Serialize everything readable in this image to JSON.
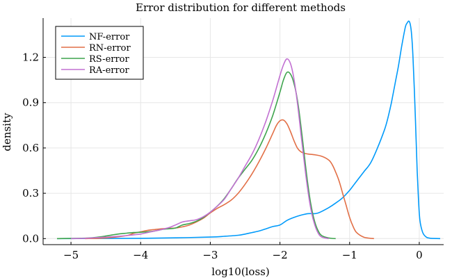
{
  "chart_data": {
    "type": "line",
    "title": "Error distribution for different methods",
    "xlabel": "log10(loss)",
    "ylabel": "density",
    "xlim": [
      -5.4,
      0.35
    ],
    "ylim": [
      -0.04,
      1.46
    ],
    "xticks": [
      -5,
      -4,
      -3,
      -2,
      -1,
      0
    ],
    "xtick_labels": [
      "−5",
      "−4",
      "−3",
      "−2",
      "−1",
      "0"
    ],
    "yticks": [
      0.0,
      0.3,
      0.6,
      0.9,
      1.2
    ],
    "ytick_labels": [
      "0.0",
      "0.3",
      "0.6",
      "0.9",
      "1.2"
    ],
    "grid": true,
    "legend_position": "top-left",
    "series": [
      {
        "name": "NF-error",
        "color": "#009AFA",
        "x": [
          -5.2,
          -4.5,
          -4.0,
          -3.5,
          -3.0,
          -2.8,
          -2.6,
          -2.5,
          -2.4,
          -2.3,
          -2.2,
          -2.1,
          -2.0,
          -1.9,
          -1.8,
          -1.7,
          -1.6,
          -1.5,
          -1.45,
          -1.4,
          -1.3,
          -1.2,
          -1.1,
          -1.0,
          -0.9,
          -0.8,
          -0.7,
          -0.6,
          -0.5,
          -0.45,
          -0.4,
          -0.35,
          -0.3,
          -0.25,
          -0.2,
          -0.17,
          -0.15,
          -0.13,
          -0.11,
          -0.09,
          -0.07,
          -0.05,
          -0.03,
          -0.01,
          0.01,
          0.05,
          0.1,
          0.15,
          0.2,
          0.3
        ],
        "y": [
          0.0,
          0.001,
          0.002,
          0.005,
          0.01,
          0.015,
          0.022,
          0.03,
          0.04,
          0.05,
          0.065,
          0.08,
          0.09,
          0.12,
          0.14,
          0.155,
          0.165,
          0.165,
          0.17,
          0.18,
          0.205,
          0.235,
          0.27,
          0.32,
          0.38,
          0.44,
          0.5,
          0.6,
          0.72,
          0.8,
          0.9,
          1.02,
          1.14,
          1.28,
          1.4,
          1.43,
          1.44,
          1.42,
          1.35,
          1.2,
          0.98,
          0.72,
          0.45,
          0.25,
          0.12,
          0.04,
          0.01,
          0.003,
          0.001,
          0.0
        ]
      },
      {
        "name": "RN-error",
        "color": "#E26F46",
        "x": [
          -4.8,
          -4.6,
          -4.4,
          -4.2,
          -4.1,
          -4.0,
          -3.9,
          -3.8,
          -3.7,
          -3.6,
          -3.5,
          -3.4,
          -3.3,
          -3.2,
          -3.1,
          -3.0,
          -2.9,
          -2.8,
          -2.7,
          -2.6,
          -2.5,
          -2.4,
          -2.3,
          -2.2,
          -2.1,
          -2.05,
          -2.0,
          -1.95,
          -1.9,
          -1.85,
          -1.8,
          -1.75,
          -1.7,
          -1.65,
          -1.6,
          -1.5,
          -1.4,
          -1.3,
          -1.25,
          -1.2,
          -1.15,
          -1.1,
          -1.05,
          -1.0,
          -0.95,
          -0.9,
          -0.8,
          -0.7,
          -0.65
        ],
        "y": [
          0.0,
          0.002,
          0.008,
          0.02,
          0.035,
          0.045,
          0.055,
          0.06,
          0.065,
          0.068,
          0.07,
          0.078,
          0.09,
          0.11,
          0.135,
          0.17,
          0.2,
          0.225,
          0.255,
          0.3,
          0.36,
          0.43,
          0.51,
          0.6,
          0.7,
          0.75,
          0.78,
          0.785,
          0.76,
          0.71,
          0.65,
          0.6,
          0.575,
          0.565,
          0.56,
          0.555,
          0.545,
          0.52,
          0.49,
          0.44,
          0.38,
          0.3,
          0.22,
          0.14,
          0.08,
          0.04,
          0.01,
          0.002,
          0.0
        ]
      },
      {
        "name": "RS-error",
        "color": "#3DA44D",
        "x": [
          -5.2,
          -4.8,
          -4.6,
          -4.5,
          -4.4,
          -4.3,
          -4.2,
          -4.1,
          -4.0,
          -3.9,
          -3.8,
          -3.7,
          -3.6,
          -3.5,
          -3.4,
          -3.3,
          -3.2,
          -3.1,
          -3.0,
          -2.9,
          -2.8,
          -2.7,
          -2.6,
          -2.5,
          -2.4,
          -2.3,
          -2.2,
          -2.1,
          -2.0,
          -1.95,
          -1.9,
          -1.85,
          -1.8,
          -1.75,
          -1.7,
          -1.65,
          -1.6,
          -1.55,
          -1.5,
          -1.45,
          -1.4,
          -1.3,
          -1.2
        ],
        "y": [
          0.0,
          0.003,
          0.01,
          0.017,
          0.025,
          0.032,
          0.036,
          0.04,
          0.042,
          0.045,
          0.05,
          0.06,
          0.065,
          0.07,
          0.09,
          0.1,
          0.115,
          0.14,
          0.175,
          0.215,
          0.265,
          0.33,
          0.4,
          0.46,
          0.52,
          0.6,
          0.7,
          0.82,
          0.97,
          1.05,
          1.1,
          1.09,
          1.03,
          0.92,
          0.75,
          0.55,
          0.36,
          0.21,
          0.11,
          0.05,
          0.02,
          0.004,
          0.0
        ]
      },
      {
        "name": "RA-error",
        "color": "#C271D2",
        "x": [
          -5.0,
          -4.8,
          -4.6,
          -4.4,
          -4.2,
          -4.1,
          -4.0,
          -3.9,
          -3.8,
          -3.7,
          -3.6,
          -3.5,
          -3.4,
          -3.3,
          -3.2,
          -3.1,
          -3.0,
          -2.9,
          -2.8,
          -2.7,
          -2.6,
          -2.5,
          -2.4,
          -2.3,
          -2.2,
          -2.1,
          -2.0,
          -1.95,
          -1.9,
          -1.85,
          -1.8,
          -1.75,
          -1.7,
          -1.65,
          -1.6,
          -1.55,
          -1.5,
          -1.45,
          -1.4,
          -1.3
        ],
        "y": [
          0.0,
          0.002,
          0.007,
          0.013,
          0.02,
          0.025,
          0.03,
          0.04,
          0.05,
          0.06,
          0.072,
          0.09,
          0.11,
          0.118,
          0.125,
          0.145,
          0.175,
          0.215,
          0.26,
          0.33,
          0.4,
          0.48,
          0.56,
          0.66,
          0.78,
          0.92,
          1.08,
          1.15,
          1.19,
          1.16,
          1.06,
          0.9,
          0.7,
          0.5,
          0.32,
          0.18,
          0.09,
          0.035,
          0.01,
          0.0
        ]
      }
    ]
  }
}
